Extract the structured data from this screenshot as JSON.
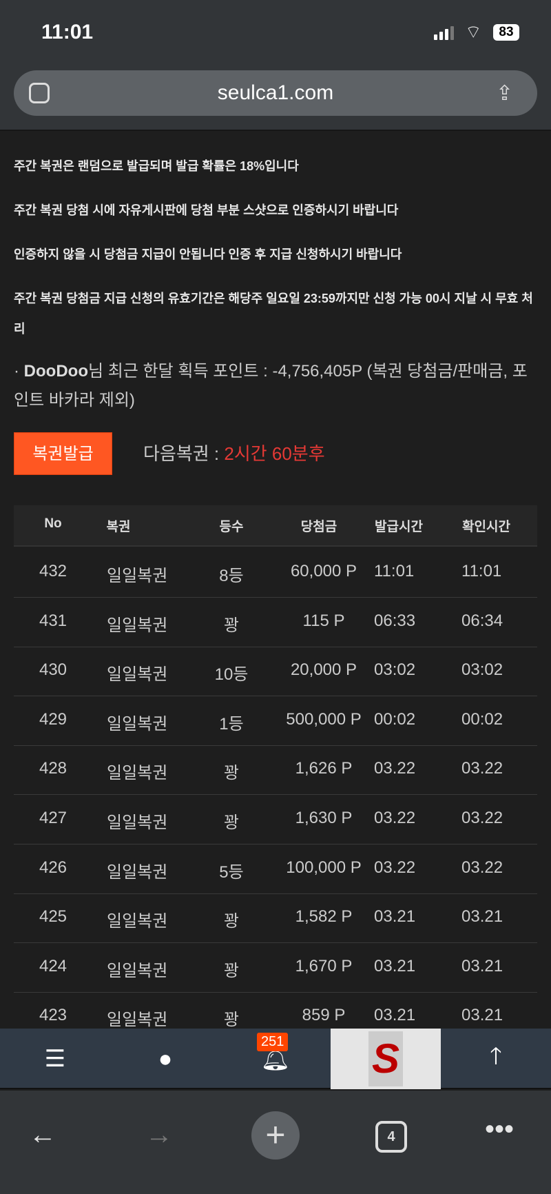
{
  "status": {
    "time": "11:01",
    "battery": "83"
  },
  "browser": {
    "url": "seulca1.com",
    "tab_count": "4"
  },
  "notes": [
    "주간 복권은 랜덤으로 발급되며 발급 확률은 18%입니다",
    "주간 복권 당첨 시에 자유게시판에 당첨 부분 스샷으로 인증하시기 바랍니다",
    "인증하지 않을 시 당첨금 지급이 안됩니다 인증 후 지급 신청하시기 바랍니다",
    "주간 복권 당첨금 지급 신청의 유효기간은 해당주 일요일 23:59까지만 신청 가능 00시 지날 시 무효 처리"
  ],
  "points": {
    "prefix": "· ",
    "user": "DooDoo",
    "text": "님 최근 한달 획득 포인트 : -4,756,405P (복권 당첨금/판매금, 포인트 바카라 제외)"
  },
  "issue_button": "복권발급",
  "next": {
    "label": "다음복권 : ",
    "value": "2시간 60분후"
  },
  "table": {
    "headers": [
      "No",
      "복권",
      "등수",
      "당첨금",
      "발급시간",
      "확인시간"
    ],
    "rows": [
      [
        "432",
        "일일복권",
        "8등",
        "60,000 P",
        "11:01",
        "11:01"
      ],
      [
        "431",
        "일일복권",
        "꽝",
        "115 P",
        "06:33",
        "06:34"
      ],
      [
        "430",
        "일일복권",
        "10등",
        "20,000 P",
        "03:02",
        "03:02"
      ],
      [
        "429",
        "일일복권",
        "1등",
        "500,000 P",
        "00:02",
        "00:02"
      ],
      [
        "428",
        "일일복권",
        "꽝",
        "1,626 P",
        "03.22",
        "03.22"
      ],
      [
        "427",
        "일일복권",
        "꽝",
        "1,630 P",
        "03.22",
        "03.22"
      ],
      [
        "426",
        "일일복권",
        "5등",
        "100,000 P",
        "03.22",
        "03.22"
      ],
      [
        "425",
        "일일복권",
        "꽝",
        "1,582 P",
        "03.21",
        "03.21"
      ],
      [
        "424",
        "일일복권",
        "꽝",
        "1,670 P",
        "03.21",
        "03.21"
      ],
      [
        "423",
        "일일복권",
        "꽝",
        "859 P",
        "03.21",
        "03.21"
      ]
    ]
  },
  "bottom_nav": {
    "notification_count": "251",
    "logo_letter": "S"
  },
  "colors": {
    "accent": "#ff5722",
    "next_time": "#e53935",
    "badge": "#ff4500"
  }
}
